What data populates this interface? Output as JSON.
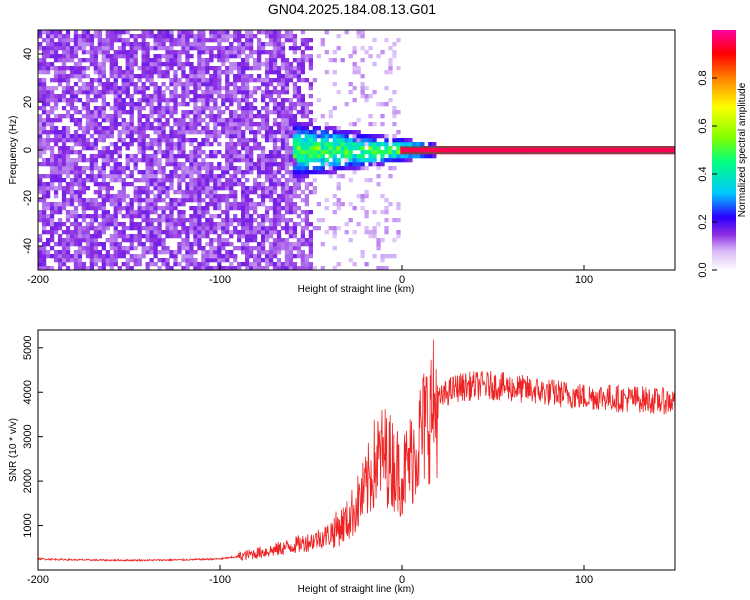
{
  "title": "GN04.2025.184.08.13.G01",
  "chart_data": [
    {
      "type": "heatmap",
      "xlabel": "Height of straight line (km)",
      "ylabel": "Frequency (Hz)",
      "xlim": [
        -200,
        150
      ],
      "ylim": [
        -50,
        50
      ],
      "xticks": [
        "-200",
        "-100",
        "0",
        "100"
      ],
      "yticks": [
        "-40",
        "-20",
        "0",
        "20",
        "40"
      ],
      "colorbar": {
        "label": "Normalized spectral amplitude",
        "ticks": [
          "0.0",
          "0.2",
          "0.4",
          "0.6",
          "0.8"
        ],
        "range": [
          0,
          1
        ]
      },
      "features": [
        {
          "description": "broadband noise",
          "x_range": [
            -200,
            -60
          ],
          "amplitude": 0.1
        },
        {
          "description": "energy concentration near 0 Hz",
          "x_range": [
            -60,
            30
          ],
          "amplitude": 0.4
        },
        {
          "description": "narrow band at 0 Hz",
          "x_range": [
            0,
            150
          ],
          "amplitude": 0.95
        }
      ],
      "grid": false
    },
    {
      "type": "line",
      "xlabel": "Height of straight line (km)",
      "ylabel": "SNR (10 * v/v)",
      "xlim": [
        -200,
        150
      ],
      "ylim": [
        0,
        5400
      ],
      "xticks": [
        "-200",
        "-100",
        "0",
        "100"
      ],
      "yticks": [
        "1000",
        "2000",
        "3000",
        "4000",
        "5000"
      ],
      "colors": {
        "series": "#ee2222"
      },
      "series": [
        {
          "x": [
            -200,
            -180,
            -160,
            -140,
            -120,
            -100,
            -90,
            -80,
            -70,
            -60,
            -50,
            -40,
            -30,
            -20,
            -15,
            -10,
            -5,
            0,
            5,
            10,
            15,
            20,
            25,
            30,
            40,
            50,
            60,
            70,
            80,
            90,
            100,
            110,
            120,
            130,
            140,
            150
          ],
          "values": [
            250,
            230,
            220,
            220,
            230,
            250,
            300,
            380,
            450,
            550,
            650,
            800,
            1100,
            1800,
            2400,
            2600,
            2400,
            2100,
            2500,
            3000,
            3500,
            3800,
            4000,
            4100,
            4150,
            4150,
            4100,
            4050,
            4000,
            3950,
            3900,
            3900,
            3850,
            3850,
            3800,
            3800
          ]
        }
      ],
      "grid": false
    }
  ]
}
